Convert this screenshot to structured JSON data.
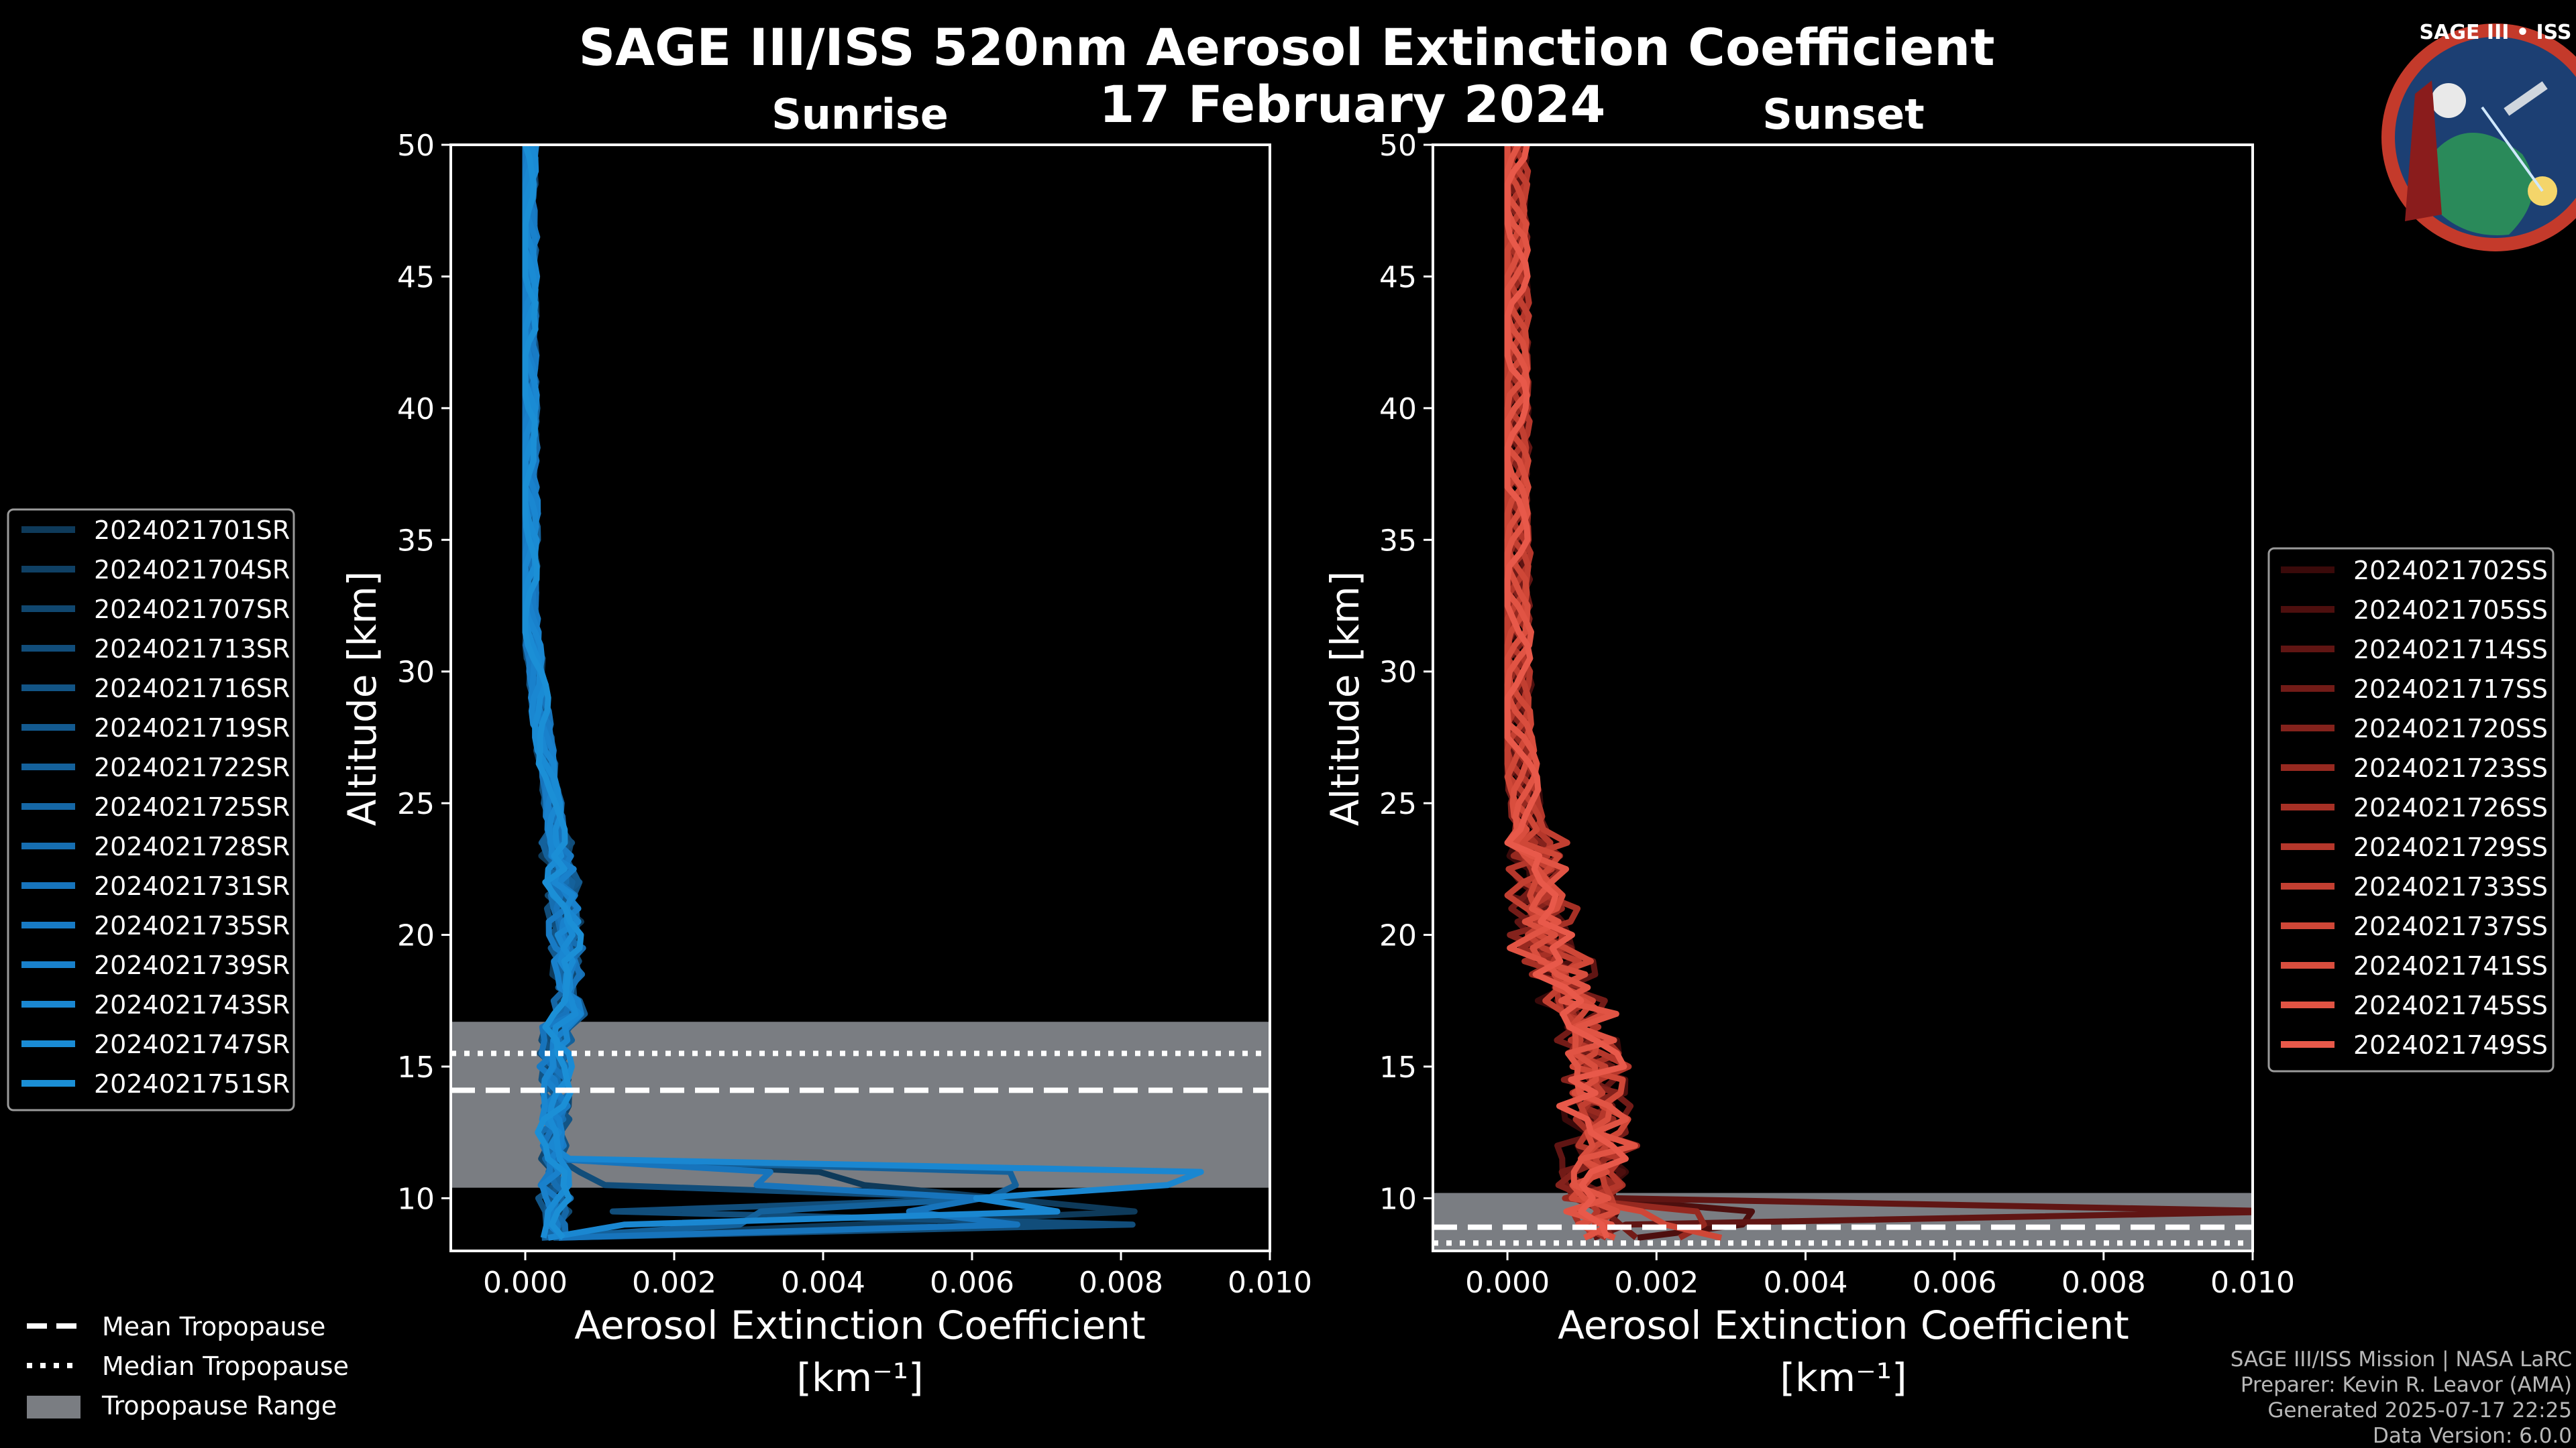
{
  "page": {
    "title": "SAGE III/ISS 520nm Aerosol Extinction Coefficient",
    "date": "17 February 2024",
    "logo_text": "SAGE III • ISS",
    "credits": [
      "SAGE III/ISS Mission | NASA LaRC",
      "Preparer: Kevin R. Leavor (AMA)",
      "Generated 2025-07-17 22:25",
      "Data Version: 6.0.0"
    ]
  },
  "tropopause_legend": {
    "mean": "Mean Tropopause",
    "median": "Median Tropopause",
    "range": "Tropopause Range"
  },
  "colors": {
    "sunrise": "#1b8fd6",
    "sunset": "#e8594a",
    "tropo_range": "#7a7d82"
  },
  "chart_data": [
    {
      "type": "line",
      "title": "Sunrise",
      "xlabel": "Aerosol Extinction Coefficient",
      "xunit": "[km⁻¹]",
      "ylabel": "Altitude [km]",
      "xlim": [
        -0.001,
        0.01
      ],
      "ylim": [
        8,
        50
      ],
      "xticks": [
        0.0,
        0.002,
        0.004,
        0.006,
        0.008,
        0.01
      ],
      "xtick_labels": [
        "0.000",
        "0.002",
        "0.004",
        "0.006",
        "0.008",
        "0.010"
      ],
      "yticks": [
        10,
        15,
        20,
        25,
        30,
        35,
        40,
        45,
        50
      ],
      "tropopause": {
        "mean": 14.1,
        "median": 15.5,
        "range": [
          10.4,
          16.7
        ]
      },
      "series": [
        {
          "name": "2024021701SR",
          "color": "#0e3a5a"
        },
        {
          "name": "2024021704SR",
          "color": "#0f4064"
        },
        {
          "name": "2024021707SR",
          "color": "#10476f"
        },
        {
          "name": "2024021713SR",
          "color": "#114d7a"
        },
        {
          "name": "2024021716SR",
          "color": "#125485"
        },
        {
          "name": "2024021719SR",
          "color": "#135a90"
        },
        {
          "name": "2024021722SR",
          "color": "#14619b"
        },
        {
          "name": "2024021725SR",
          "color": "#1567a6"
        },
        {
          "name": "2024021728SR",
          "color": "#166eb1"
        },
        {
          "name": "2024021731SR",
          "color": "#1774bc"
        },
        {
          "name": "2024021735SR",
          "color": "#187bc5"
        },
        {
          "name": "2024021739SR",
          "color": "#1981cc"
        },
        {
          "name": "2024021743SR",
          "color": "#1a87d1"
        },
        {
          "name": "2024021747SR",
          "color": "#1a8bd4"
        },
        {
          "name": "2024021751SR",
          "color": "#1b8fd6"
        }
      ],
      "legend_position": "center-left"
    },
    {
      "type": "line",
      "title": "Sunset",
      "xlabel": "Aerosol Extinction Coefficient",
      "xunit": "[km⁻¹]",
      "ylabel": "Altitude [km]",
      "xlim": [
        -0.001,
        0.01
      ],
      "ylim": [
        8,
        50
      ],
      "xticks": [
        0.0,
        0.002,
        0.004,
        0.006,
        0.008,
        0.01
      ],
      "xtick_labels": [
        "0.000",
        "0.002",
        "0.004",
        "0.006",
        "0.008",
        "0.010"
      ],
      "yticks": [
        10,
        15,
        20,
        25,
        30,
        35,
        40,
        45,
        50
      ],
      "tropopause": {
        "mean": 8.9,
        "median": 8.3,
        "range": [
          8.0,
          10.2
        ]
      },
      "series": [
        {
          "name": "2024021702SS",
          "color": "#3a0a0a"
        },
        {
          "name": "2024021705SS",
          "color": "#4d0f0e"
        },
        {
          "name": "2024021714SS",
          "color": "#601513"
        },
        {
          "name": "2024021717SS",
          "color": "#721b17"
        },
        {
          "name": "2024021720SS",
          "color": "#84221c"
        },
        {
          "name": "2024021723SS",
          "color": "#962920"
        },
        {
          "name": "2024021726SS",
          "color": "#a63025"
        },
        {
          "name": "2024021729SS",
          "color": "#b5372b"
        },
        {
          "name": "2024021733SS",
          "color": "#c23f31"
        },
        {
          "name": "2024021737SS",
          "color": "#cf4737"
        },
        {
          "name": "2024021741SS",
          "color": "#d94e3e"
        },
        {
          "name": "2024021745SS",
          "color": "#e15444"
        },
        {
          "name": "2024021749SS",
          "color": "#e8594a"
        }
      ],
      "legend_position": "center-right"
    }
  ]
}
